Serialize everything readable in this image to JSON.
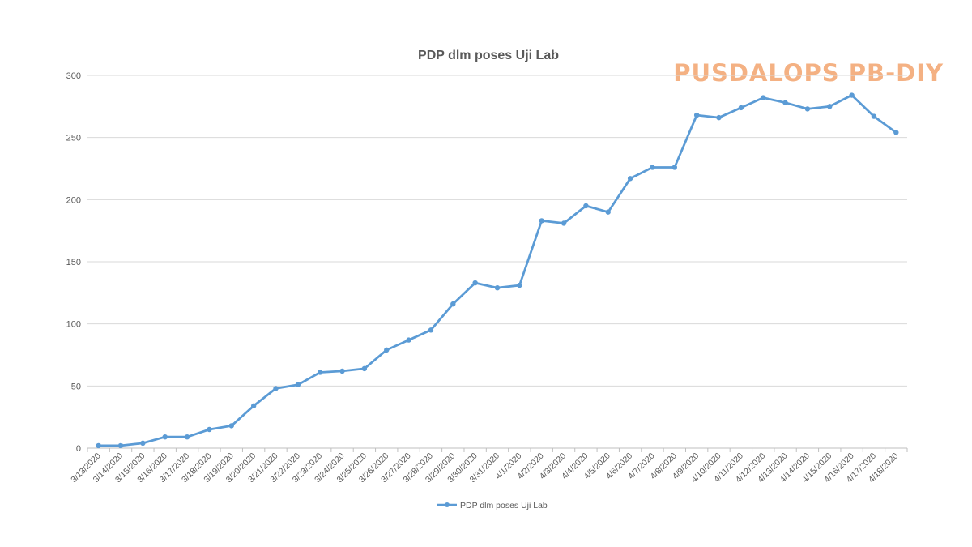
{
  "watermark": {
    "text": "PUSDALOPS PB-DIY",
    "color": "#F4B183"
  },
  "chart_data": {
    "type": "line",
    "title": "PDP dlm poses Uji Lab",
    "xlabel": "",
    "ylabel": "",
    "ylim": [
      0,
      300
    ],
    "yticks": [
      0,
      50,
      100,
      150,
      200,
      250,
      300
    ],
    "grid": true,
    "legend_position": "bottom",
    "categories": [
      "3/13/2020",
      "3/14/2020",
      "3/15/2020",
      "3/16/2020",
      "3/17/2020",
      "3/18/2020",
      "3/19/2020",
      "3/20/2020",
      "3/21/2020",
      "3/22/2020",
      "3/23/2020",
      "3/24/2020",
      "3/25/2020",
      "3/26/2020",
      "3/27/2020",
      "3/28/2020",
      "3/29/2020",
      "3/30/2020",
      "3/31/2020",
      "4/1/2020",
      "4/2/2020",
      "4/3/2020",
      "4/4/2020",
      "4/5/2020",
      "4/6/2020",
      "4/7/2020",
      "4/8/2020",
      "4/9/2020",
      "4/10/2020",
      "4/11/2020",
      "4/12/2020",
      "4/13/2020",
      "4/14/2020",
      "4/15/2020",
      "4/16/2020",
      "4/17/2020",
      "4/18/2020"
    ],
    "series": [
      {
        "name": "PDP dlm poses Uji Lab",
        "color": "#5B9BD5",
        "values": [
          2,
          2,
          4,
          9,
          9,
          15,
          18,
          34,
          48,
          51,
          61,
          62,
          64,
          79,
          87,
          95,
          116,
          133,
          129,
          131,
          183,
          181,
          195,
          190,
          217,
          226,
          226,
          268,
          266,
          274,
          282,
          278,
          273,
          275,
          284,
          267,
          254
        ]
      }
    ]
  }
}
